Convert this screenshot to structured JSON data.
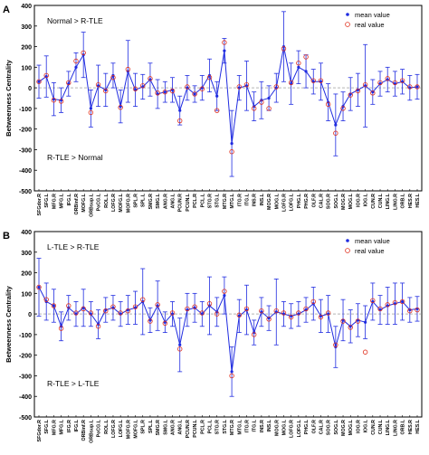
{
  "chart_data": [
    {
      "type": "line",
      "panel_letter": "A",
      "ylabel": "Betweenness Centrality",
      "ylim": [
        -500,
        400
      ],
      "yticks": [
        -500,
        -400,
        -300,
        -200,
        -100,
        0,
        100,
        200,
        300,
        400
      ],
      "grid": false,
      "legend_position": "top-right",
      "annotations": [
        "Normal > R-TLE",
        "R-TLE > Normal"
      ],
      "series": [
        {
          "name": "mean value",
          "color": "#1f2be0",
          "marker": "dot"
        },
        {
          "name": "real value",
          "color": "#e0301e",
          "marker": "circle"
        }
      ],
      "categories": [
        "SFGdor.R",
        "SFG.L",
        "MFG.R",
        "MFG.L",
        "IFG.L",
        "ORBinf.R",
        "MOFG.L",
        "ORBsup.L",
        "PoCG.L",
        "ROL.L",
        "LOFG.R",
        "MOFG.L",
        "MOFG.R",
        "SPL.R",
        "SPL.L",
        "SMG.R",
        "SMG.L",
        "ANG.R",
        "ANG.L",
        "PCUN.R",
        "PCUN.L",
        "PCL.R",
        "PCL.L",
        "STG.R",
        "STG.L",
        "MTG.R",
        "MTG.L",
        "ITG.R",
        "ITG.L",
        "INS.R",
        "INS.L",
        "MOG.R",
        "MOG.L",
        "LOFG.R",
        "LOFG.L",
        "PHG.L",
        "PHG.R",
        "OLF.R",
        "CAL.R",
        "SOG.R",
        "SOG.L",
        "MOG.R",
        "MOG.L",
        "IOG.R",
        "IOG.L",
        "CUN.R",
        "CUN.L",
        "LING.L",
        "LING.R",
        "ORB.L",
        "HES.R",
        "HES.L"
      ],
      "tick_labels": [
        "SFGdor.R",
        "SFG.L",
        "MFG.R",
        "MFG.L",
        "IFG.L",
        "ORBinf.R",
        "MOFG.L",
        "ORBsup.L",
        "PoCG.L",
        "ROL.L",
        "LOFG.R",
        "MOFG.L",
        "MOFG.R",
        "SPL.R",
        "SPL.L",
        "SMG.R",
        "SMG.L",
        "ANG.R",
        "ANG.L",
        "PCUN.R",
        "PCUN.L",
        "PCL.R",
        "PCL.L",
        "STG.R",
        "STG.L",
        "MTG.R",
        "MTG.L",
        "ITG.R",
        "ITG.L",
        "INS.R",
        "INS.L",
        "MOG.R",
        "MOG.L",
        "LOFG.R",
        "LOFG.L",
        "PHG.L",
        "PHG.R",
        "OLF.R",
        "CAL.R",
        "SOG.R",
        "SOG.L",
        "MOG.R",
        "MOG.L",
        "IOG.R",
        "IOG.L",
        "CUN.R",
        "CUN.L",
        "LING.L",
        "LING.R",
        "ORB.L",
        "HES.R",
        "HES.L"
      ],
      "mean": [
        30,
        55,
        -55,
        -60,
        20,
        100,
        160,
        -100,
        10,
        -10,
        60,
        -90,
        80,
        -10,
        5,
        40,
        -30,
        -20,
        -10,
        -110,
        0,
        -30,
        0,
        60,
        -40,
        180,
        -270,
        0,
        10,
        -90,
        -60,
        -50,
        0,
        200,
        20,
        100,
        80,
        30,
        30,
        -70,
        -180,
        -90,
        -30,
        -10,
        10,
        -20,
        20,
        40,
        20,
        30,
        0,
        5
      ],
      "real": [
        30,
        60,
        -60,
        -65,
        25,
        130,
        170,
        -120,
        15,
        -15,
        50,
        -95,
        90,
        -5,
        10,
        45,
        -25,
        -20,
        -15,
        -160,
        5,
        -30,
        -5,
        50,
        -110,
        220,
        -310,
        5,
        15,
        -100,
        -70,
        -100,
        5,
        190,
        25,
        120,
        150,
        35,
        35,
        -80,
        -220,
        -100,
        -35,
        -15,
        15,
        -25,
        25,
        45,
        25,
        35,
        5,
        5
      ],
      "err": [
        80,
        100,
        80,
        60,
        60,
        70,
        110,
        90,
        100,
        80,
        60,
        80,
        150,
        80,
        60,
        80,
        70,
        50,
        60,
        70,
        60,
        40,
        60,
        80,
        70,
        60,
        160,
        60,
        120,
        70,
        90,
        60,
        70,
        170,
        100,
        80,
        80,
        60,
        90,
        90,
        150,
        70,
        80,
        80,
        200,
        60,
        60,
        60,
        60,
        60,
        60,
        60
      ]
    },
    {
      "type": "line",
      "panel_letter": "B",
      "ylabel": "Betweenness Centrality",
      "ylim": [
        -500,
        400
      ],
      "yticks": [
        -500,
        -400,
        -300,
        -200,
        -100,
        0,
        100,
        200,
        300,
        400
      ],
      "grid": false,
      "legend_position": "top-right",
      "annotations": [
        "L-TLE > R-TLE",
        "R-TLE > L-TLE"
      ],
      "series": [
        {
          "name": "mean value",
          "color": "#1f2be0",
          "marker": "dot"
        },
        {
          "name": "real value",
          "color": "#e0301e",
          "marker": "circle"
        }
      ],
      "categories": [
        "SFGdor.R",
        "SFG.L",
        "MFG.R",
        "MFG.L",
        "IFG.R",
        "IFG.L",
        "ORBinf.R",
        "ORBsup.L",
        "PoCG.L",
        "ROL.L",
        "LOFG.R",
        "LOFG.L",
        "MOFG.R",
        "MOFG.L",
        "SPL.R",
        "SPL.L",
        "SMG.R",
        "SMG.L",
        "ANG.R",
        "ANG.L",
        "PCUN.R",
        "PCUN.L",
        "PCL.R",
        "PCL.L",
        "STG.R",
        "STG.L",
        "MTG.R",
        "MTG.L",
        "ITG.R",
        "ITG.L",
        "INS.R",
        "INS.L",
        "MOG.R",
        "MOG.L",
        "LOFG.R",
        "LOFG.L",
        "PHG.L",
        "OLF.R",
        "CAL.R",
        "SOG.R",
        "SOG.L",
        "MOG.R",
        "MOG.L",
        "IOG.R",
        "IOG.L",
        "CUN.R",
        "CUN.L",
        "LING.L",
        "LING.R",
        "ORB.L",
        "HES.R",
        "HES.L"
      ],
      "tick_labels": [
        "SFGdor.R",
        "SFG.L",
        "MFG.R",
        "MFG.L",
        "IFG.R",
        "IFG.L",
        "ORBinf.R",
        "ORBsup.L",
        "PoCG.L",
        "ROL.L",
        "LOFG.R",
        "LOFG.L",
        "MOFG.R",
        "MOFG.L",
        "SPL.R",
        "SPL.L",
        "SMG.R",
        "SMG.L",
        "ANG.R",
        "ANG.L",
        "PCUN.R",
        "PCUN.L",
        "PCL.R",
        "PCL.L",
        "STG.R",
        "STG.L",
        "MTG.R",
        "MTG.L",
        "ITG.R",
        "ITG.L",
        "INS.R",
        "INS.L",
        "MOG.R",
        "MOG.L",
        "LOFG.R",
        "LOFG.L",
        "PHG.L",
        "OLF.R",
        "CAL.R",
        "SOG.R",
        "SOG.L",
        "MOG.R",
        "MOG.L",
        "IOG.R",
        "IOG.L",
        "CUN.R",
        "CUN.L",
        "LING.L",
        "LING.R",
        "ORB.L",
        "HES.R",
        "HES.L"
      ],
      "mean": [
        130,
        60,
        40,
        -60,
        30,
        0,
        30,
        0,
        -50,
        20,
        30,
        0,
        20,
        30,
        60,
        -30,
        40,
        -40,
        0,
        -150,
        20,
        30,
        0,
        40,
        10,
        90,
        -280,
        -10,
        20,
        -90,
        10,
        -20,
        10,
        0,
        -10,
        0,
        20,
        50,
        -10,
        0,
        -160,
        -30,
        -60,
        -30,
        -40,
        60,
        20,
        40,
        50,
        60,
        20,
        25
      ],
      "real": [
        130,
        70,
        40,
        -70,
        40,
        5,
        25,
        5,
        -60,
        15,
        35,
        5,
        15,
        35,
        70,
        -35,
        45,
        -45,
        5,
        -170,
        25,
        35,
        5,
        50,
        0,
        110,
        -300,
        -5,
        25,
        -100,
        15,
        -25,
        15,
        5,
        -15,
        5,
        25,
        60,
        -15,
        5,
        -150,
        -35,
        -65,
        -35,
        -185,
        65,
        25,
        45,
        55,
        60,
        15,
        20
      ],
      "err": [
        140,
        90,
        80,
        70,
        60,
        60,
        90,
        60,
        70,
        60,
        60,
        60,
        70,
        80,
        160,
        60,
        120,
        50,
        60,
        130,
        80,
        70,
        60,
        140,
        70,
        90,
        120,
        80,
        120,
        60,
        70,
        60,
        160,
        60,
        60,
        60,
        60,
        80,
        80,
        90,
        100,
        100,
        80,
        80,
        80,
        90,
        70,
        90,
        100,
        90,
        60,
        60
      ]
    }
  ]
}
